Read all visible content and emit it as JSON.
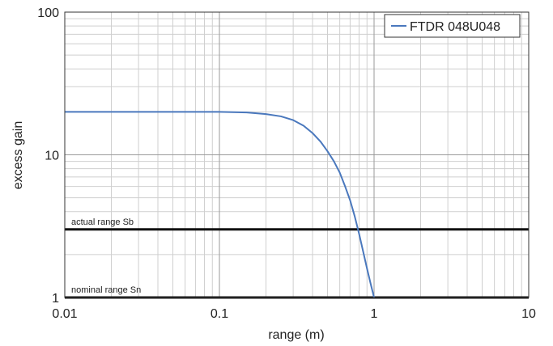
{
  "chart_data": {
    "type": "line",
    "xlabel": "range (m)",
    "ylabel": "excess gain",
    "x_scale": "log",
    "y_scale": "log",
    "xlim": [
      0.01,
      10
    ],
    "ylim": [
      1,
      100
    ],
    "x_ticks": [
      {
        "value": 0.01,
        "label": "0.01"
      },
      {
        "value": 0.1,
        "label": "0.1"
      },
      {
        "value": 1,
        "label": "1"
      },
      {
        "value": 10,
        "label": "10"
      }
    ],
    "y_ticks": [
      {
        "value": 1,
        "label": "1"
      },
      {
        "value": 10,
        "label": "10"
      },
      {
        "value": 100,
        "label": "100"
      }
    ],
    "grid": true,
    "legend_position": "top-right",
    "series": [
      {
        "name": "FTDR 048U048",
        "color": "#4a78bd",
        "x": [
          0.01,
          0.03,
          0.1,
          0.15,
          0.2,
          0.25,
          0.3,
          0.35,
          0.4,
          0.45,
          0.5,
          0.55,
          0.6,
          0.65,
          0.7,
          0.75,
          0.8,
          0.85,
          0.9,
          0.95,
          1.0
        ],
        "y": [
          20,
          20,
          20,
          19.8,
          19.3,
          18.6,
          17.5,
          16,
          14.2,
          12.4,
          10.6,
          9.0,
          7.5,
          6.0,
          4.8,
          3.7,
          2.8,
          2.1,
          1.6,
          1.25,
          1.0
        ]
      }
    ],
    "reference_lines": [
      {
        "label": "actual range Sb",
        "y": 3,
        "color": "#111111"
      },
      {
        "label": "nominal range Sn",
        "y": 1,
        "color": "#111111"
      }
    ]
  }
}
